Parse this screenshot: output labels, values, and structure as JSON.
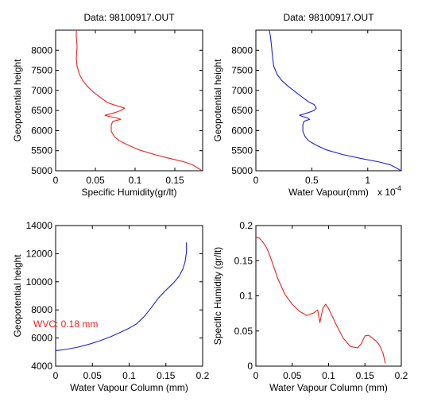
{
  "chart_data": [
    {
      "type": "line",
      "title": "Data: 98100917.OUT",
      "xlabel": "Specific Humidity(gr/lt)",
      "ylabel": "Geopotential height",
      "xlim": [
        0,
        0.185
      ],
      "ylim": [
        5000,
        8500
      ],
      "xticks": [
        0,
        0.05,
        0.1,
        0.15
      ],
      "xtick_labels": [
        "0",
        "0.05",
        "0.1",
        "0.15"
      ],
      "yticks": [
        5000,
        5500,
        6000,
        6500,
        7000,
        7500,
        8000
      ],
      "ytick_labels": [
        "5000",
        "5500",
        "6000",
        "6500",
        "7000",
        "7500",
        "8000"
      ],
      "color": "#e8231f",
      "grid": false,
      "series": [
        {
          "x": [
            0.026,
            0.026,
            0.027,
            0.026,
            0.027,
            0.03,
            0.034,
            0.04,
            0.048,
            0.058,
            0.065,
            0.072,
            0.08,
            0.087,
            0.082,
            0.075,
            0.062,
            0.068,
            0.076,
            0.082,
            0.072,
            0.07,
            0.07,
            0.074,
            0.08,
            0.09,
            0.105,
            0.125,
            0.145,
            0.162,
            0.172,
            0.178,
            0.182,
            0.184
          ],
          "y": [
            8500,
            8350,
            8100,
            7800,
            7600,
            7400,
            7250,
            7100,
            6950,
            6800,
            6700,
            6650,
            6600,
            6560,
            6500,
            6450,
            6380,
            6350,
            6320,
            6280,
            6230,
            6150,
            5980,
            5850,
            5750,
            5650,
            5520,
            5400,
            5300,
            5220,
            5150,
            5080,
            5030,
            5000
          ]
        }
      ]
    },
    {
      "type": "line",
      "title": "Data: 98100917.OUT",
      "xlabel": "Water Vapour(mm)",
      "x_multiplier_label": "x 10",
      "x_multiplier_exp": "-4",
      "ylabel": "Geopotential height",
      "xlim": [
        0,
        1.3
      ],
      "ylim": [
        5000,
        8500
      ],
      "xticks": [
        0,
        0.5,
        1
      ],
      "xtick_labels": [
        "0",
        "0.5",
        "1"
      ],
      "yticks": [
        5000,
        5500,
        6000,
        6500,
        7000,
        7500,
        8000
      ],
      "ytick_labels": [
        "5000",
        "5500",
        "6000",
        "6500",
        "7000",
        "7500",
        "8000"
      ],
      "color": "#1c24c8",
      "grid": false,
      "series": [
        {
          "x": [
            0.12,
            0.13,
            0.14,
            0.15,
            0.16,
            0.19,
            0.23,
            0.29,
            0.36,
            0.43,
            0.48,
            0.52,
            0.54,
            0.52,
            0.47,
            0.39,
            0.42,
            0.46,
            0.48,
            0.43,
            0.42,
            0.42,
            0.44,
            0.47,
            0.53,
            0.63,
            0.78,
            0.95,
            1.1,
            1.2,
            1.25,
            1.28,
            1.3
          ],
          "y": [
            8500,
            8350,
            8100,
            7800,
            7600,
            7400,
            7250,
            7100,
            6950,
            6800,
            6700,
            6650,
            6560,
            6500,
            6450,
            6380,
            6350,
            6320,
            6280,
            6230,
            6150,
            5980,
            5850,
            5750,
            5650,
            5520,
            5400,
            5300,
            5220,
            5150,
            5080,
            5030,
            5000
          ]
        }
      ]
    },
    {
      "type": "line",
      "title": "",
      "xlabel": "Water Vapour Column (mm)",
      "ylabel": "Geopotential height",
      "xlim": [
        0,
        0.2
      ],
      "ylim": [
        4000,
        14000
      ],
      "xticks": [
        0,
        0.05,
        0.1,
        0.15,
        0.2
      ],
      "xtick_labels": [
        "0",
        "0.05",
        "0.1",
        "0.15",
        "0.2"
      ],
      "yticks": [
        4000,
        6000,
        8000,
        10000,
        12000,
        14000
      ],
      "ytick_labels": [
        "4000",
        "6000",
        "8000",
        "10000",
        "12000",
        "14000"
      ],
      "color": "#1c24c8",
      "annotation": "WVC: 0.18 mm",
      "annotation_color": "#e8231f",
      "grid": false,
      "series": [
        {
          "x": [
            0.0,
            0.015,
            0.03,
            0.045,
            0.06,
            0.075,
            0.09,
            0.1,
            0.11,
            0.12,
            0.13,
            0.14,
            0.15,
            0.16,
            0.168,
            0.173,
            0.176,
            0.178,
            0.178
          ],
          "y": [
            5100,
            5200,
            5350,
            5550,
            5800,
            6100,
            6450,
            6700,
            7000,
            7500,
            8150,
            8850,
            9400,
            9900,
            10400,
            10900,
            11400,
            12100,
            12800
          ]
        }
      ]
    },
    {
      "type": "line",
      "title": "",
      "xlabel": "Water Vapour Column (mm)",
      "ylabel": "Specific Humidity (gr/lt)",
      "xlim": [
        0,
        0.2
      ],
      "ylim": [
        0,
        0.2
      ],
      "xticks": [
        0,
        0.05,
        0.1,
        0.15,
        0.2
      ],
      "xtick_labels": [
        "0",
        "0.05",
        "0.1",
        "0.15",
        "0.2"
      ],
      "yticks": [
        0,
        0.05,
        0.1,
        0.15,
        0.2
      ],
      "ytick_labels": [
        "0",
        "0.05",
        "0.1",
        "0.15",
        "0.2"
      ],
      "color": "#e8231f",
      "grid": false,
      "series": [
        {
          "x": [
            0.0,
            0.005,
            0.01,
            0.015,
            0.02,
            0.025,
            0.03,
            0.04,
            0.05,
            0.06,
            0.07,
            0.08,
            0.085,
            0.088,
            0.092,
            0.096,
            0.1,
            0.11,
            0.12,
            0.13,
            0.14,
            0.145,
            0.15,
            0.155,
            0.16,
            0.165,
            0.17,
            0.175,
            0.178
          ],
          "y": [
            0.184,
            0.182,
            0.176,
            0.168,
            0.155,
            0.14,
            0.125,
            0.102,
            0.088,
            0.078,
            0.072,
            0.076,
            0.08,
            0.062,
            0.082,
            0.088,
            0.082,
            0.06,
            0.04,
            0.028,
            0.026,
            0.032,
            0.043,
            0.044,
            0.04,
            0.036,
            0.03,
            0.018,
            0.004
          ]
        }
      ]
    }
  ]
}
